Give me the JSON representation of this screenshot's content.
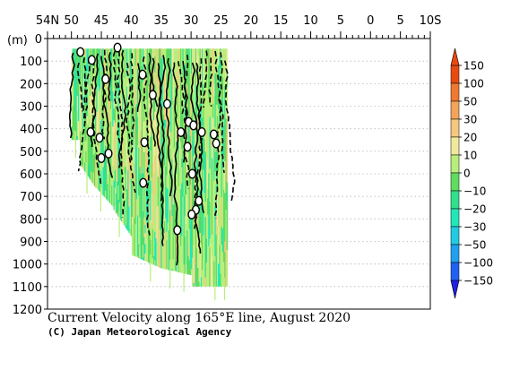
{
  "chart_data": {
    "type": "heatmap",
    "title": "Current Velocity along 165°E line, August 2020",
    "credit": "(C) Japan Meteorological Agency",
    "ylabel": "(m)",
    "xlim": [
      54,
      -10
    ],
    "ylim": [
      0,
      1200
    ],
    "x_ticks": [
      {
        "value": 54,
        "label": "54N"
      },
      {
        "value": 50,
        "label": "50"
      },
      {
        "value": 45,
        "label": "45"
      },
      {
        "value": 40,
        "label": "40"
      },
      {
        "value": 35,
        "label": "35"
      },
      {
        "value": 30,
        "label": "30"
      },
      {
        "value": 25,
        "label": "25"
      },
      {
        "value": 20,
        "label": "20"
      },
      {
        "value": 15,
        "label": "15"
      },
      {
        "value": 10,
        "label": "10"
      },
      {
        "value": 5,
        "label": "5"
      },
      {
        "value": 0,
        "label": "0"
      },
      {
        "value": -5,
        "label": "5"
      },
      {
        "value": -10,
        "label": "10S"
      }
    ],
    "y_ticks": [
      0,
      100,
      200,
      300,
      400,
      500,
      600,
      700,
      800,
      900,
      1000,
      1100,
      1200
    ],
    "colorbar": {
      "levels": [
        150,
        100,
        50,
        30,
        20,
        10,
        0,
        -10,
        -20,
        -30,
        -50,
        -100,
        -150
      ],
      "labels": [
        "150",
        "100",
        "50",
        "30",
        "20",
        "10",
        "0",
        "−10",
        "−20",
        "−30",
        "−50",
        "−100",
        "−150"
      ],
      "colors": [
        "#e84a10",
        "#f07830",
        "#f4a458",
        "#f6c87e",
        "#f0e89c",
        "#b8ee7c",
        "#60dc60",
        "#30e08c",
        "#20e8b8",
        "#20cce4",
        "#20a0f0",
        "#2060f4",
        "#2020e0"
      ]
    },
    "data_extent": {
      "lat_north": 50,
      "lat_south": 24,
      "depth_max_approx": 1100
    },
    "zero_contour_labels": [
      {
        "lat": 48.5,
        "depth": 60
      },
      {
        "lat": 46.6,
        "depth": 95
      },
      {
        "lat": 42.3,
        "depth": 40
      },
      {
        "lat": 44.3,
        "depth": 180
      },
      {
        "lat": 38.1,
        "depth": 160
      },
      {
        "lat": 36.4,
        "depth": 250
      },
      {
        "lat": 34.0,
        "depth": 290
      },
      {
        "lat": 30.4,
        "depth": 370
      },
      {
        "lat": 29.6,
        "depth": 385
      },
      {
        "lat": 31.7,
        "depth": 415
      },
      {
        "lat": 28.2,
        "depth": 415
      },
      {
        "lat": 26.2,
        "depth": 425
      },
      {
        "lat": 46.8,
        "depth": 415
      },
      {
        "lat": 45.3,
        "depth": 440
      },
      {
        "lat": 37.8,
        "depth": 460
      },
      {
        "lat": 25.8,
        "depth": 465
      },
      {
        "lat": 30.6,
        "depth": 480
      },
      {
        "lat": 43.8,
        "depth": 510
      },
      {
        "lat": 45.0,
        "depth": 530
      },
      {
        "lat": 29.8,
        "depth": 600
      },
      {
        "lat": 38.0,
        "depth": 640
      },
      {
        "lat": 28.7,
        "depth": 720
      },
      {
        "lat": 29.2,
        "depth": 760
      },
      {
        "lat": 29.9,
        "depth": 780
      },
      {
        "lat": 32.3,
        "depth": 850
      }
    ]
  }
}
